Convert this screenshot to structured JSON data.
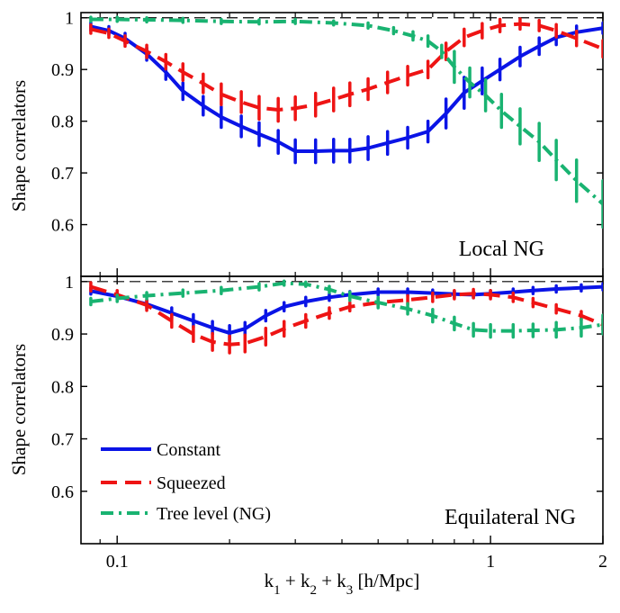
{
  "chart_data": [
    {
      "type": "line",
      "panel_label": "Local NG",
      "xlabel": "k_1 + k_2 + k_3 [h/Mpc]",
      "ylabel": "Shape correlators",
      "xscale": "log",
      "xlim": [
        0.08,
        2
      ],
      "ylim": [
        0.5,
        1.01
      ],
      "reference_line": 1,
      "yticks": [
        "0.6",
        "0.7",
        "0.8",
        "0.9",
        "1"
      ],
      "xticks": [
        "0.1",
        "1",
        "2"
      ],
      "series": [
        {
          "name": "Constant",
          "color": "#0a14e6",
          "dash": "solid",
          "x": [
            0.085,
            0.095,
            0.105,
            0.12,
            0.135,
            0.15,
            0.17,
            0.19,
            0.215,
            0.24,
            0.27,
            0.3,
            0.34,
            0.38,
            0.42,
            0.47,
            0.53,
            0.6,
            0.68,
            0.76,
            0.85,
            0.95,
            1.06,
            1.2,
            1.35,
            1.5,
            1.7,
            2.0
          ],
          "y": [
            0.983,
            0.975,
            0.96,
            0.93,
            0.895,
            0.858,
            0.83,
            0.808,
            0.79,
            0.775,
            0.76,
            0.742,
            0.742,
            0.743,
            0.743,
            0.748,
            0.758,
            0.768,
            0.78,
            0.815,
            0.855,
            0.878,
            0.9,
            0.925,
            0.945,
            0.962,
            0.972,
            0.98
          ],
          "err": [
            0.008,
            0.008,
            0.01,
            0.012,
            0.014,
            0.016,
            0.018,
            0.02,
            0.02,
            0.022,
            0.022,
            0.022,
            0.022,
            0.022,
            0.022,
            0.022,
            0.022,
            0.02,
            0.02,
            0.028,
            0.03,
            0.025,
            0.02,
            0.018,
            0.016,
            0.014,
            0.012,
            0.01
          ]
        },
        {
          "name": "Squeezed",
          "color": "#ee1414",
          "dash": "long",
          "x": [
            0.085,
            0.095,
            0.105,
            0.12,
            0.135,
            0.15,
            0.17,
            0.19,
            0.215,
            0.24,
            0.27,
            0.3,
            0.34,
            0.38,
            0.42,
            0.47,
            0.53,
            0.6,
            0.68,
            0.76,
            0.85,
            0.95,
            1.06,
            1.2,
            1.35,
            1.5,
            1.7,
            2.0
          ],
          "y": [
            0.978,
            0.97,
            0.955,
            0.935,
            0.915,
            0.895,
            0.873,
            0.852,
            0.837,
            0.826,
            0.822,
            0.825,
            0.832,
            0.842,
            0.852,
            0.862,
            0.875,
            0.888,
            0.9,
            0.935,
            0.962,
            0.975,
            0.985,
            0.988,
            0.985,
            0.975,
            0.96,
            0.94
          ],
          "err": [
            0.008,
            0.008,
            0.01,
            0.012,
            0.014,
            0.016,
            0.018,
            0.02,
            0.02,
            0.022,
            0.022,
            0.022,
            0.022,
            0.022,
            0.022,
            0.02,
            0.02,
            0.018,
            0.016,
            0.016,
            0.016,
            0.014,
            0.012,
            0.01,
            0.01,
            0.012,
            0.014,
            0.016
          ]
        },
        {
          "name": "Tree level (NG)",
          "color": "#19b371",
          "dash": "dashdot",
          "x": [
            0.085,
            0.1,
            0.12,
            0.15,
            0.19,
            0.24,
            0.3,
            0.38,
            0.47,
            0.55,
            0.62,
            0.68,
            0.74,
            0.8,
            0.88,
            0.97,
            1.07,
            1.2,
            1.35,
            1.5,
            1.7,
            2.0
          ],
          "y": [
            0.997,
            0.997,
            0.996,
            0.995,
            0.993,
            0.992,
            0.993,
            0.99,
            0.985,
            0.975,
            0.965,
            0.955,
            0.935,
            0.905,
            0.875,
            0.85,
            0.82,
            0.79,
            0.76,
            0.725,
            0.685,
            0.64
          ],
          "err": [
            0.004,
            0.004,
            0.004,
            0.004,
            0.004,
            0.004,
            0.004,
            0.004,
            0.005,
            0.006,
            0.008,
            0.01,
            0.012,
            0.03,
            0.028,
            0.03,
            0.032,
            0.034,
            0.036,
            0.038,
            0.04,
            0.045
          ]
        }
      ]
    },
    {
      "type": "line",
      "panel_label": "Equilateral NG",
      "xlabel": "k_1 + k_2 + k_3 [h/Mpc]",
      "ylabel": "Shape correlators",
      "xscale": "log",
      "xlim": [
        0.08,
        2
      ],
      "ylim": [
        0.5,
        1.01
      ],
      "reference_line": 1,
      "yticks": [
        "0.6",
        "0.7",
        "0.8",
        "0.9",
        "1"
      ],
      "xticks": [
        "0.1",
        "1",
        "2"
      ],
      "series": [
        {
          "name": "Constant",
          "color": "#0a14e6",
          "dash": "solid",
          "x": [
            0.085,
            0.1,
            0.12,
            0.14,
            0.16,
            0.18,
            0.2,
            0.22,
            0.25,
            0.28,
            0.32,
            0.37,
            0.42,
            0.5,
            0.6,
            0.7,
            0.8,
            0.9,
            1.0,
            1.15,
            1.3,
            1.5,
            1.75,
            2.0
          ],
          "y": [
            0.982,
            0.972,
            0.957,
            0.94,
            0.925,
            0.912,
            0.902,
            0.91,
            0.935,
            0.952,
            0.962,
            0.97,
            0.975,
            0.98,
            0.98,
            0.978,
            0.976,
            0.975,
            0.977,
            0.98,
            0.983,
            0.986,
            0.988,
            0.99
          ],
          "err": [
            0.006,
            0.006,
            0.008,
            0.01,
            0.012,
            0.012,
            0.014,
            0.012,
            0.01,
            0.008,
            0.008,
            0.006,
            0.006,
            0.006,
            0.006,
            0.006,
            0.006,
            0.006,
            0.006,
            0.006,
            0.006,
            0.006,
            0.006,
            0.006
          ]
        },
        {
          "name": "Squeezed",
          "color": "#ee1414",
          "dash": "long",
          "x": [
            0.085,
            0.1,
            0.12,
            0.14,
            0.16,
            0.18,
            0.2,
            0.22,
            0.25,
            0.28,
            0.32,
            0.37,
            0.42,
            0.5,
            0.6,
            0.7,
            0.8,
            0.9,
            1.0,
            1.15,
            1.3,
            1.5,
            1.75,
            2.0
          ],
          "y": [
            0.99,
            0.975,
            0.955,
            0.925,
            0.9,
            0.885,
            0.88,
            0.882,
            0.895,
            0.91,
            0.925,
            0.94,
            0.952,
            0.96,
            0.965,
            0.97,
            0.975,
            0.977,
            0.975,
            0.97,
            0.96,
            0.948,
            0.935,
            0.918
          ],
          "err": [
            0.008,
            0.008,
            0.01,
            0.012,
            0.014,
            0.016,
            0.016,
            0.016,
            0.016,
            0.014,
            0.012,
            0.01,
            0.008,
            0.008,
            0.008,
            0.008,
            0.008,
            0.008,
            0.008,
            0.008,
            0.008,
            0.008,
            0.008,
            0.01
          ]
        },
        {
          "name": "Tree level (NG)",
          "color": "#19b371",
          "dash": "dashdot",
          "x": [
            0.085,
            0.1,
            0.12,
            0.15,
            0.19,
            0.24,
            0.28,
            0.32,
            0.37,
            0.42,
            0.5,
            0.6,
            0.7,
            0.8,
            0.9,
            1.0,
            1.15,
            1.3,
            1.5,
            1.75,
            2.0
          ],
          "y": [
            0.962,
            0.968,
            0.973,
            0.978,
            0.983,
            0.99,
            0.997,
            0.995,
            0.985,
            0.972,
            0.96,
            0.948,
            0.935,
            0.92,
            0.908,
            0.906,
            0.906,
            0.907,
            0.908,
            0.912,
            0.918
          ],
          "err": [
            0.006,
            0.006,
            0.006,
            0.006,
            0.006,
            0.006,
            0.004,
            0.004,
            0.006,
            0.008,
            0.01,
            0.01,
            0.012,
            0.012,
            0.012,
            0.012,
            0.012,
            0.012,
            0.014,
            0.016,
            0.018
          ]
        }
      ]
    }
  ],
  "legend": {
    "items": [
      {
        "label": "Constant",
        "color": "#0a14e6",
        "dash": "solid"
      },
      {
        "label": "Squeezed",
        "color": "#ee1414",
        "dash": "long"
      },
      {
        "label": "Tree level (NG)",
        "color": "#19b371",
        "dash": "dashdot"
      }
    ]
  },
  "xaxis_title": {
    "k1": "k",
    "sub1": "1",
    "plus1": " + k",
    "sub2": "2",
    "plus2": " + k",
    "sub3": "3",
    "unit": " [h/Mpc]"
  }
}
